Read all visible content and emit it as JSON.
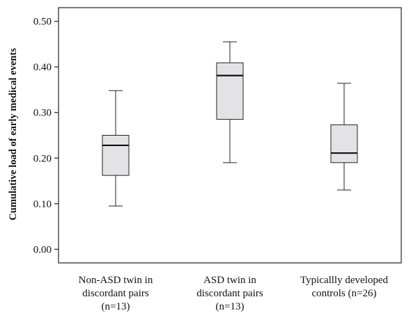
{
  "chart_data": {
    "type": "boxplot",
    "title": "",
    "xlabel": "",
    "ylabel": "Cumulative load of early medical events",
    "ylim": [
      -0.03,
      0.53
    ],
    "yticks": [
      "0.00",
      "0.10",
      "0.20",
      "0.30",
      "0.40",
      "0.50"
    ],
    "grid": false,
    "box_fill": "#e3e3e5",
    "categories": [
      {
        "lines": [
          "Non-ASD twin in",
          "discordant pairs",
          "(n=13)"
        ]
      },
      {
        "lines": [
          "ASD twin in",
          "discordant pairs",
          "(n=13)"
        ]
      },
      {
        "lines": [
          "Typicallly developed",
          "controls (n=26)"
        ]
      }
    ],
    "boxes": [
      {
        "min": 0.095,
        "q1": 0.162,
        "median": 0.228,
        "q3": 0.25,
        "max": 0.348
      },
      {
        "min": 0.19,
        "q1": 0.285,
        "median": 0.381,
        "q3": 0.409,
        "max": 0.455
      },
      {
        "min": 0.13,
        "q1": 0.19,
        "median": 0.211,
        "q3": 0.273,
        "max": 0.364
      }
    ]
  }
}
